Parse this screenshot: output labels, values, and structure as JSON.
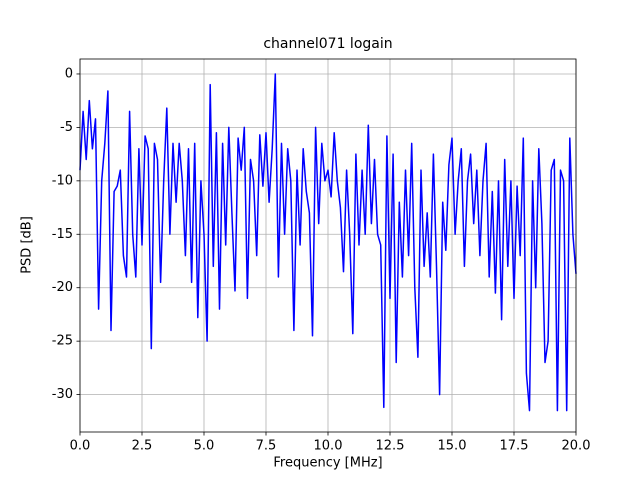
{
  "chart_data": {
    "type": "line",
    "title": "channel071 logain",
    "x_label": "Frequency [MHz]",
    "y_label": "PSD [dB]",
    "x": [
      0,
      0.125,
      0.25,
      0.375,
      0.5,
      0.625,
      0.75,
      0.875,
      1,
      1.125,
      1.25,
      1.375,
      1.5,
      1.625,
      1.75,
      1.875,
      2,
      2.125,
      2.25,
      2.375,
      2.5,
      2.625,
      2.75,
      2.875,
      3,
      3.125,
      3.25,
      3.375,
      3.5,
      3.625,
      3.75,
      3.875,
      4,
      4.125,
      4.25,
      4.375,
      4.5,
      4.625,
      4.75,
      4.875,
      5,
      5.125,
      5.25,
      5.375,
      5.5,
      5.625,
      5.75,
      5.875,
      6,
      6.125,
      6.25,
      6.375,
      6.5,
      6.625,
      6.75,
      6.875,
      7,
      7.125,
      7.25,
      7.375,
      7.5,
      7.625,
      7.75,
      7.875,
      8,
      8.125,
      8.25,
      8.375,
      8.5,
      8.625,
      8.75,
      8.875,
      9,
      9.125,
      9.25,
      9.375,
      9.5,
      9.625,
      9.75,
      9.875,
      10,
      10.125,
      10.25,
      10.375,
      10.5,
      10.625,
      10.75,
      10.875,
      11,
      11.125,
      11.25,
      11.375,
      11.5,
      11.625,
      11.75,
      11.875,
      12,
      12.125,
      12.25,
      12.375,
      12.5,
      12.625,
      12.75,
      12.875,
      13,
      13.125,
      13.25,
      13.375,
      13.5,
      13.625,
      13.75,
      13.875,
      14,
      14.125,
      14.25,
      14.375,
      14.5,
      14.625,
      14.75,
      14.875,
      15,
      15.125,
      15.25,
      15.375,
      15.5,
      15.625,
      15.75,
      15.875,
      16,
      16.125,
      16.25,
      16.375,
      16.5,
      16.625,
      16.75,
      16.875,
      17,
      17.125,
      17.25,
      17.375,
      17.5,
      17.625,
      17.75,
      17.875,
      18,
      18.125,
      18.25,
      18.375,
      18.5,
      18.625,
      18.75,
      18.875,
      19,
      19.125,
      19.25,
      19.375,
      19.5,
      19.625,
      19.75,
      19.875,
      20
    ],
    "series": [
      {
        "color": "#0000ff",
        "values": [
          -9,
          -3.5,
          -8,
          -2.5,
          -7,
          -4.2,
          -22,
          -10,
          -6.5,
          -1.6,
          -24,
          -11,
          -10.5,
          -9,
          -17,
          -19,
          -3.5,
          -15,
          -19,
          -7,
          -16,
          -5.8,
          -7,
          -25.7,
          -6.5,
          -8,
          -19.5,
          -10,
          -3.2,
          -15,
          -6.5,
          -12,
          -6.5,
          -10,
          -17,
          -7,
          -19.5,
          -6.5,
          -22.8,
          -10,
          -15,
          -25,
          -1,
          -18,
          -5.5,
          -22,
          -6.5,
          -16,
          -5,
          -13,
          -20.3,
          -6,
          -9,
          -5,
          -21,
          -8,
          -10,
          -17,
          -5.7,
          -10.5,
          -5.5,
          -12,
          -7,
          0,
          -19,
          -6.5,
          -15,
          -7,
          -10,
          -24,
          -9,
          -16,
          -7,
          -11,
          -13,
          -24.5,
          -5,
          -14,
          -6.5,
          -10,
          -9,
          -11.5,
          -5.5,
          -10,
          -12.5,
          -18.5,
          -9,
          -15,
          -24.3,
          -7.5,
          -16,
          -9,
          -15,
          -4.8,
          -14,
          -8,
          -15,
          -16,
          -31.2,
          -5.8,
          -21,
          -7.5,
          -27,
          -12,
          -19,
          -9,
          -17,
          -6.5,
          -20,
          -26.5,
          -9,
          -18,
          -13,
          -19,
          -7.5,
          -18,
          -30,
          -12,
          -16.5,
          -8.5,
          -6,
          -15,
          -10,
          -7,
          -18,
          -10,
          -7.5,
          -14,
          -9,
          -17,
          -10,
          -6.5,
          -19,
          -11,
          -20.5,
          -10,
          -23,
          -8,
          -18,
          -10,
          -21,
          -10.5,
          -17,
          -6,
          -28,
          -31.5,
          -10,
          -20,
          -7,
          -14,
          -27,
          -25,
          -9,
          -8,
          -31.5,
          -9,
          -10,
          -31.5,
          -6,
          -15,
          -18.7
        ]
      }
    ],
    "xlim": [
      0,
      20
    ],
    "ylim": [
      -33.5,
      1.4
    ],
    "xticks": [
      {
        "value": 0,
        "label": "0.0"
      },
      2.5,
      {
        "value": 5,
        "label": "5.0"
      },
      7.5,
      {
        "value": 10,
        "label": "10.0"
      },
      12.5,
      {
        "value": 15,
        "label": "15.0"
      },
      17.5,
      {
        "value": 20,
        "label": "20.0"
      }
    ],
    "yticks": [
      0,
      -5,
      -10,
      -15,
      -20,
      -25,
      -30
    ],
    "grid": true
  }
}
